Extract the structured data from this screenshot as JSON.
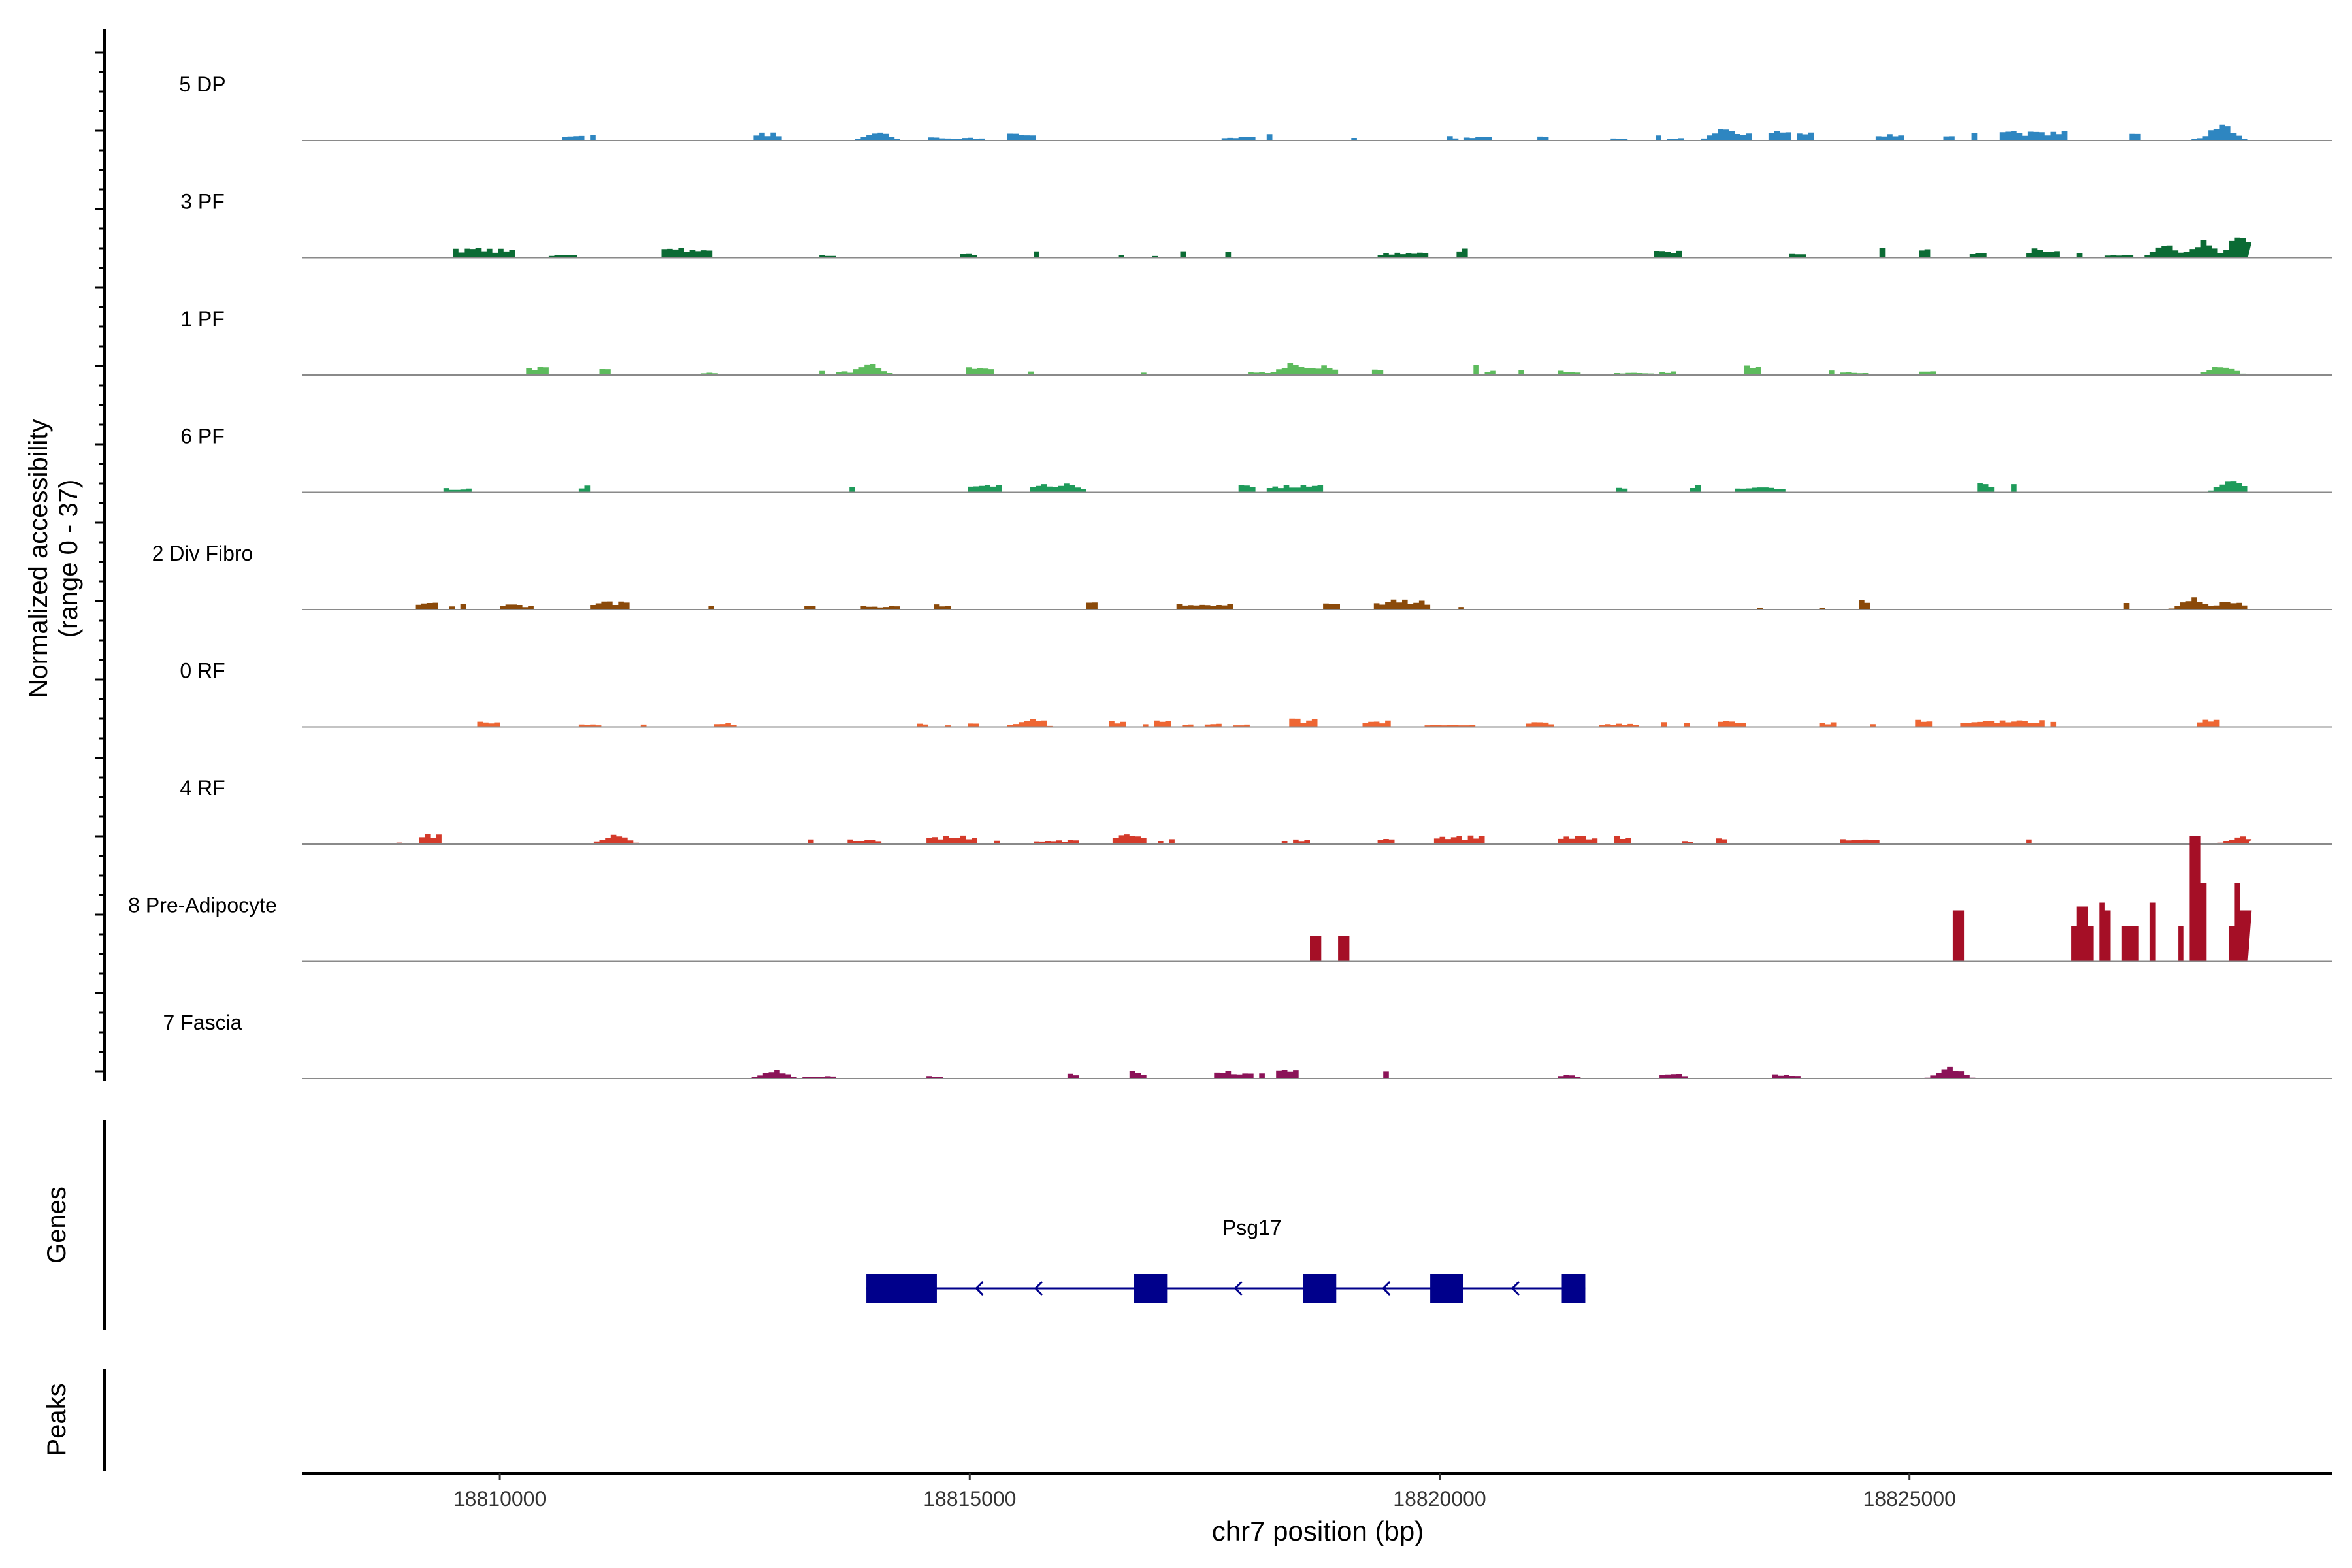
{
  "chart_data": {
    "type": "area",
    "title": "",
    "ylabel_line1": "Normalized accessibility",
    "ylabel_line2": "(range 0 - 37)",
    "yrange": [
      0,
      37
    ],
    "xlabel": "chr7 position (bp)",
    "xlim": [
      18807900,
      18829500
    ],
    "xticks": [
      18810000,
      18815000,
      18820000,
      18825000
    ],
    "xtick_labels": [
      "18810000",
      "18815000",
      "18820000",
      "18825000"
    ],
    "tracks": [
      {
        "name": "5 DP",
        "color": "#2E86C1",
        "start": 18809400,
        "end": 18828600,
        "density": 0.42,
        "scale": 4,
        "seed": 11,
        "peaks": [
          [
            18823000,
            8
          ],
          [
            18828300,
            10
          ],
          [
            18814000,
            5
          ]
        ]
      },
      {
        "name": "3 PF",
        "color": "#0B6B34",
        "start": 18808900,
        "end": 18828600,
        "density": 0.48,
        "scale": 4,
        "seed": 23,
        "peaks": [
          [
            18828500,
            14
          ],
          [
            18828100,
            10
          ],
          [
            18827700,
            8
          ]
        ]
      },
      {
        "name": "1 PF",
        "color": "#5DBB5D",
        "start": 18808900,
        "end": 18828600,
        "density": 0.47,
        "scale": 4,
        "seed": 37,
        "peaks": [
          [
            18813900,
            7
          ],
          [
            18818400,
            7
          ],
          [
            18828300,
            6
          ]
        ]
      },
      {
        "name": "6 PF",
        "color": "#1E9B5A",
        "start": 18809100,
        "end": 18828600,
        "density": 0.38,
        "scale": 5,
        "seed": 41,
        "peaks": [
          [
            18828400,
            7
          ],
          [
            18816000,
            5
          ]
        ]
      },
      {
        "name": "2 Div Fibro",
        "color": "#8B4A0A",
        "start": 18809100,
        "end": 18828600,
        "density": 0.45,
        "scale": 4,
        "seed": 53,
        "peaks": [
          [
            18828000,
            7
          ]
        ]
      },
      {
        "name": "0 RF",
        "color": "#EE6633",
        "start": 18809100,
        "end": 18828600,
        "density": 0.55,
        "scale": 3,
        "seed": 67,
        "peaks": [
          [
            18815600,
            4
          ]
        ]
      },
      {
        "name": "4 RF",
        "color": "#D43A2A",
        "start": 18808900,
        "end": 18828600,
        "density": 0.4,
        "scale": 4,
        "seed": 71,
        "peaks": [
          [
            18811200,
            6
          ],
          [
            18828500,
            5
          ]
        ]
      },
      {
        "name": "8 Pre-Adipocyte",
        "color": "#A50F26",
        "start": 18808900,
        "end": 18828600,
        "density": 0,
        "scale": 0,
        "seed": 83,
        "fixed": [
          [
            18818600,
            18818700,
            13
          ],
          [
            18818920,
            18819020,
            13
          ],
          [
            18825450,
            18825550,
            26
          ],
          [
            18826680,
            18826760,
            18
          ],
          [
            18826780,
            18826860,
            28
          ],
          [
            18826880,
            18826960,
            18
          ],
          [
            18826980,
            18827050,
            30
          ],
          [
            18827060,
            18827120,
            26
          ],
          [
            18827220,
            18827290,
            18
          ],
          [
            18827320,
            18827400,
            18
          ],
          [
            18827560,
            18827620,
            30
          ],
          [
            18827840,
            18827920,
            18
          ],
          [
            18827960,
            18828060,
            64
          ],
          [
            18828060,
            18828110,
            40
          ],
          [
            18828350,
            18828420,
            18
          ],
          [
            18828440,
            18828520,
            40
          ],
          [
            18828520,
            18828590,
            26
          ]
        ]
      },
      {
        "name": "7 Fascia",
        "color": "#8B1358",
        "start": 18812200,
        "end": 18827900,
        "density": 0.42,
        "scale": 4,
        "seed": 97,
        "peaks": [
          [
            18825400,
            7
          ],
          [
            18812900,
            5
          ]
        ]
      }
    ],
    "gene": {
      "name": "Psg17",
      "strand": "-",
      "start": 18813900,
      "end": 18821550,
      "exons": [
        [
          18813900,
          18814650
        ],
        [
          18816750,
          18817100
        ],
        [
          18818550,
          18818900
        ],
        [
          18819900,
          18820250
        ],
        [
          18821300,
          18821550
        ]
      ],
      "color": "#00008B"
    },
    "panels": [
      "Genes",
      "Peaks"
    ]
  }
}
